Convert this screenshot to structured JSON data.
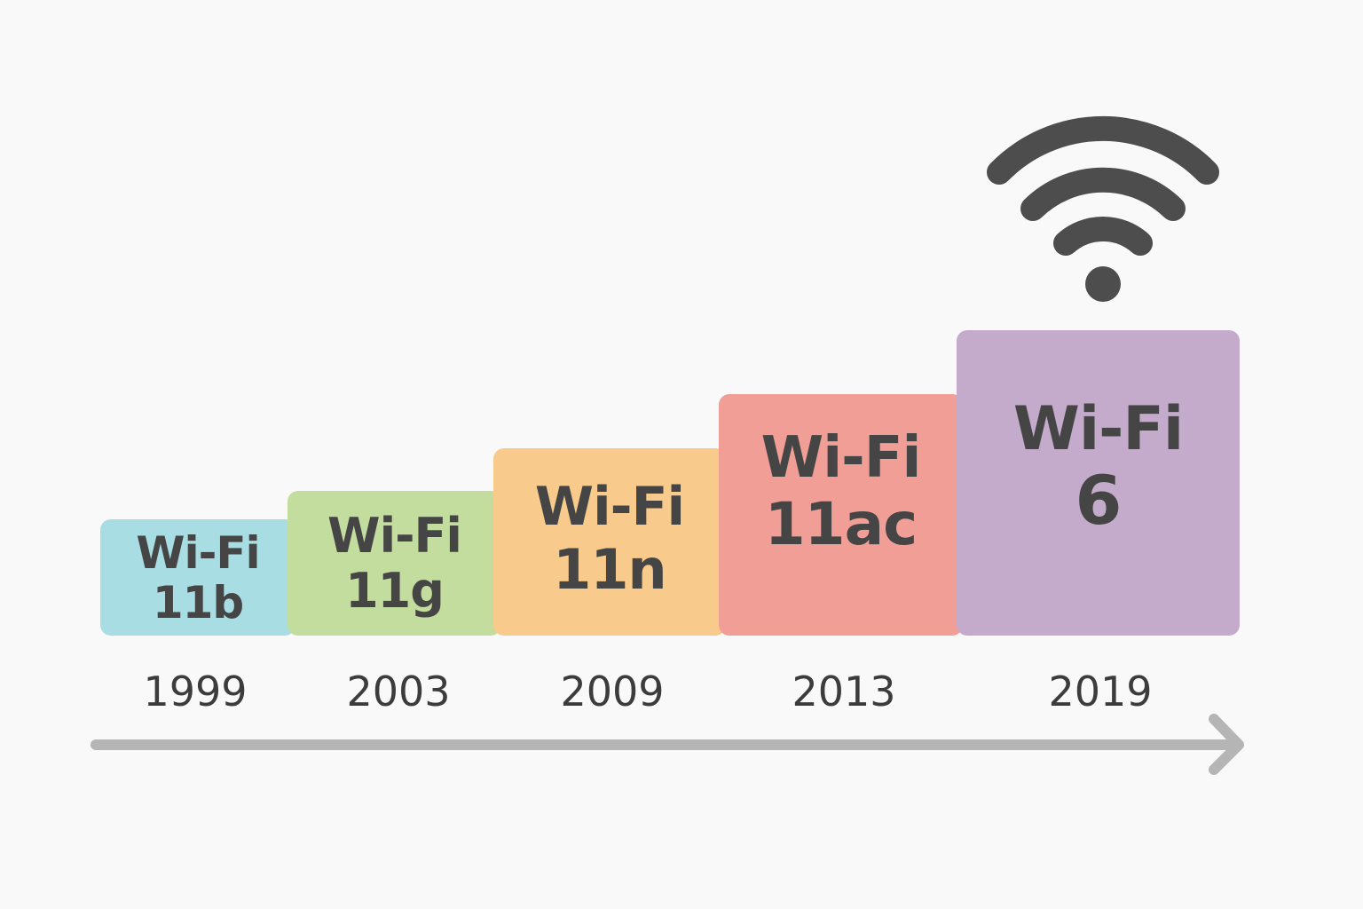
{
  "generations": [
    {
      "name": "Wi-Fi",
      "version": "11b",
      "year": "1999",
      "color": "#a8dde3"
    },
    {
      "name": "Wi-Fi",
      "version": "11g",
      "year": "2003",
      "color": "#c3dd9f"
    },
    {
      "name": "Wi-Fi",
      "version": "11n",
      "year": "2009",
      "color": "#f8cb8c"
    },
    {
      "name": "Wi-Fi",
      "version": "11ac",
      "year": "2013",
      "color": "#f09e96"
    },
    {
      "name": "Wi-Fi",
      "version": "6",
      "year": "2019",
      "color": "#c4abcc"
    }
  ],
  "icons": {
    "wifi": "wifi-icon",
    "arrow": "timeline-arrow"
  },
  "colors": {
    "text": "#454545",
    "arrow": "#b5b5b5",
    "icon": "#4d4d4d"
  }
}
